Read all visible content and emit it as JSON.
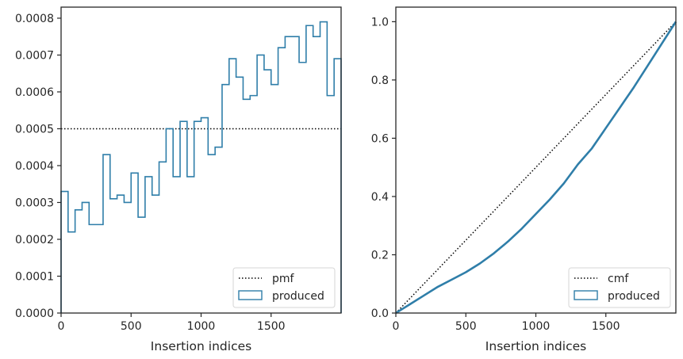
{
  "chart_data": [
    {
      "type": "step",
      "xlabel": "Insertion indices",
      "ylabel": "",
      "xlim": [
        0,
        2000
      ],
      "ylim": [
        0,
        0.00083
      ],
      "xticks": [
        0,
        500,
        1000,
        1500
      ],
      "xtick_labels": [
        "0",
        "500",
        "1000",
        "1500"
      ],
      "yticks": [
        0,
        0.0001,
        0.0002,
        0.0003,
        0.0004,
        0.0005,
        0.0006,
        0.0007,
        0.0008
      ],
      "ytick_labels": [
        "0.0000",
        "0.0001",
        "0.0002",
        "0.0003",
        "0.0004",
        "0.0005",
        "0.0006",
        "0.0007",
        "0.0008"
      ],
      "grid": false,
      "legend_position": "bottom-right",
      "reference": {
        "name": "pmf",
        "style": "dotted",
        "color": "#000000",
        "value": 0.0005
      },
      "histogram": {
        "name": "produced",
        "color": "#2f7ea9",
        "bin_width": 50,
        "values": [
          0.00033,
          0.00022,
          0.00028,
          0.0003,
          0.00024,
          0.00024,
          0.00043,
          0.00031,
          0.00032,
          0.0003,
          0.00038,
          0.00026,
          0.00037,
          0.00032,
          0.00041,
          0.0005,
          0.00037,
          0.00052,
          0.00037,
          0.00052,
          0.00053,
          0.00043,
          0.00045,
          0.00062,
          0.00069,
          0.00064,
          0.00058,
          0.00059,
          0.0007,
          0.00066,
          0.00062,
          0.00072,
          0.00075,
          0.00075,
          0.00068,
          0.00078,
          0.00075,
          0.00079,
          0.00059,
          0.00069
        ]
      }
    },
    {
      "type": "line",
      "xlabel": "Insertion indices",
      "ylabel": "",
      "xlim": [
        0,
        2000
      ],
      "ylim": [
        0,
        1.05
      ],
      "xticks": [
        0,
        500,
        1000,
        1500
      ],
      "xtick_labels": [
        "0",
        "500",
        "1000",
        "1500"
      ],
      "yticks": [
        0.0,
        0.2,
        0.4,
        0.6,
        0.8,
        1.0
      ],
      "ytick_labels": [
        "0.0",
        "0.2",
        "0.4",
        "0.6",
        "0.8",
        "1.0"
      ],
      "grid": false,
      "legend_position": "bottom-right",
      "reference": {
        "name": "cmf",
        "style": "dotted",
        "color": "#000000",
        "x": [
          0,
          2000
        ],
        "y": [
          0,
          1.0
        ]
      },
      "series": [
        {
          "name": "produced",
          "color": "#2f7ea9",
          "x": [
            0,
            100,
            200,
            300,
            400,
            500,
            600,
            700,
            800,
            900,
            1000,
            1100,
            1200,
            1300,
            1400,
            1500,
            1600,
            1700,
            1800,
            1900,
            2000
          ],
          "y": [
            0.0,
            0.03,
            0.06,
            0.09,
            0.115,
            0.14,
            0.17,
            0.205,
            0.245,
            0.29,
            0.34,
            0.39,
            0.445,
            0.51,
            0.565,
            0.635,
            0.705,
            0.775,
            0.85,
            0.925,
            1.0
          ]
        }
      ]
    }
  ]
}
